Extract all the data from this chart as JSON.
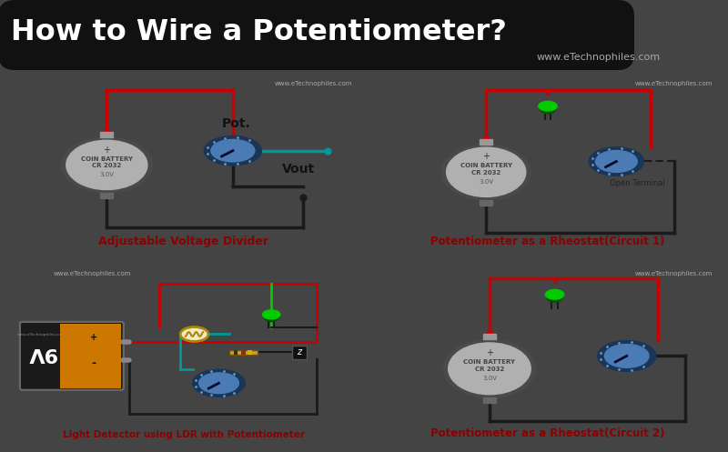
{
  "title": "How to Wire a Potentiometer?",
  "title_bg": "#111111",
  "title_color": "#ffffff",
  "watermark": "www.eTechnophiles.com",
  "bg_color": "#444444",
  "panel_bg": "#e0e2e8",
  "label_color": "#8b0000",
  "labels": [
    "Adjustable Voltage Divider",
    "Potentiometer as a Rheostat(Circuit 1)",
    "Light Detector using LDR with Potentiometer",
    "Potentiometer as a Rheostat(Circuit 2)"
  ],
  "wire_red": "#cc0000",
  "wire_black": "#1a1a1a",
  "wire_cyan": "#009999",
  "led_green": "#00cc00",
  "led_dark": "#005500",
  "battery_outer": "#4a4a4a",
  "battery_inner": "#b0b0b0",
  "pot_outer": "#1a3555",
  "pot_inner": "#4a7bb5",
  "nine_v_black": "#1a1a1a",
  "nine_v_orange": "#cc7700"
}
